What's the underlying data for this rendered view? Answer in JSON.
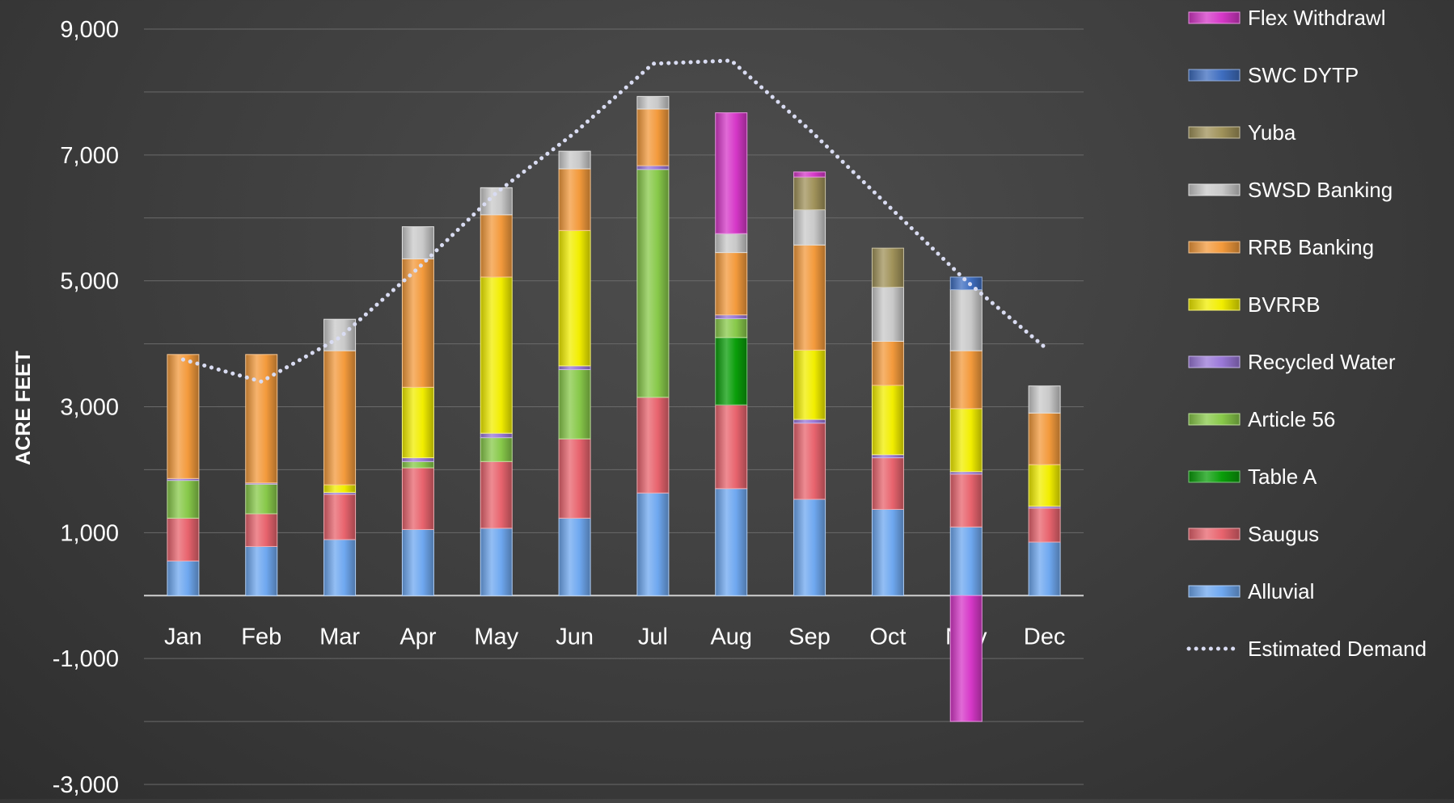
{
  "chart_data": {
    "type": "bar",
    "stacked": true,
    "ylabel": "ACRE  FEET",
    "xlabel": "",
    "ylim": [
      -3000,
      9000
    ],
    "yticks": [
      -3000,
      -1000,
      1000,
      3000,
      5000,
      7000,
      9000
    ],
    "ytick_labels": [
      "-3,000",
      "-1,000",
      "1,000",
      "3,000",
      "5,000",
      "7,000",
      "9,000"
    ],
    "grid": "horizontal",
    "legend_position": "right",
    "categories": [
      "Jan",
      "Feb",
      "Mar",
      "Apr",
      "May",
      "Jun",
      "Jul",
      "Aug",
      "Sep",
      "Oct",
      "Nov",
      "Dec"
    ],
    "series": [
      {
        "name": "Alluvial",
        "color": "#6fa8f0",
        "values": [
          550,
          780,
          890,
          1050,
          1070,
          1230,
          1630,
          1700,
          1530,
          1370,
          1090,
          850
        ]
      },
      {
        "name": "Saugus",
        "color": "#e8646e",
        "values": [
          680,
          520,
          720,
          980,
          1060,
          1260,
          1520,
          1330,
          1210,
          820,
          840,
          540
        ]
      },
      {
        "name": "Table A",
        "color": "#0a9e0a",
        "values": [
          0,
          0,
          0,
          0,
          0,
          0,
          0,
          1070,
          0,
          0,
          0,
          0
        ]
      },
      {
        "name": "Article 56",
        "color": "#88c94a",
        "values": [
          600,
          470,
          0,
          100,
          380,
          1100,
          3620,
          300,
          0,
          0,
          0,
          0
        ]
      },
      {
        "name": "Recycled Water",
        "color": "#9a78d8",
        "values": [
          30,
          20,
          30,
          60,
          70,
          60,
          60,
          60,
          60,
          50,
          40,
          30
        ]
      },
      {
        "name": "BVRRB",
        "color": "#f2ee00",
        "values": [
          0,
          0,
          120,
          1120,
          2480,
          2150,
          0,
          0,
          1100,
          1100,
          1000,
          660
        ]
      },
      {
        "name": "RRB Banking",
        "color": "#f39a3c",
        "values": [
          1970,
          2040,
          2130,
          2040,
          990,
          980,
          900,
          990,
          1670,
          700,
          920,
          820
        ]
      },
      {
        "name": "SWSD Banking",
        "color": "#c9c9c9",
        "values": [
          0,
          0,
          500,
          510,
          430,
          280,
          200,
          300,
          560,
          860,
          970,
          430
        ]
      },
      {
        "name": "Yuba",
        "color": "#a0925a",
        "values": [
          0,
          0,
          0,
          0,
          0,
          0,
          0,
          0,
          520,
          620,
          0,
          0
        ]
      },
      {
        "name": "SWC DYTP",
        "color": "#3f6ec0",
        "values": [
          0,
          0,
          0,
          0,
          0,
          0,
          0,
          0,
          0,
          0,
          200,
          0
        ]
      },
      {
        "name": "Flex Withdrawl",
        "color": "#d638c8",
        "values": [
          0,
          0,
          0,
          0,
          0,
          0,
          0,
          1920,
          80,
          0,
          -2000,
          0
        ]
      }
    ],
    "line_series": {
      "name": "Estimated Demand",
      "color": "#d9dcf2",
      "style": "dotted",
      "values": [
        3750,
        3400,
        4100,
        5200,
        6400,
        7350,
        8450,
        8500,
        7400,
        6200,
        5000,
        3950
      ]
    },
    "legend_order": [
      "Flex Withdrawl",
      "SWC DYTP",
      "Yuba",
      "SWSD Banking",
      "RRB Banking",
      "BVRRB",
      "Recycled Water",
      "Article 56",
      "Table A",
      "Saugus",
      "Alluvial",
      "Estimated Demand"
    ]
  }
}
